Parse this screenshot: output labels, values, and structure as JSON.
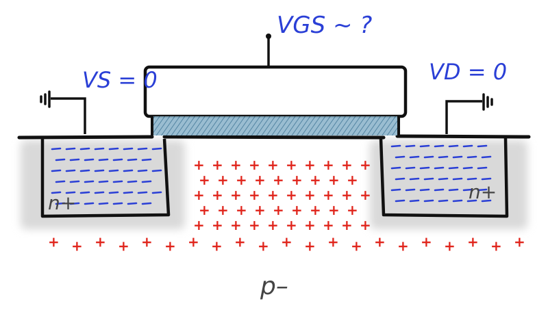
{
  "labels": {
    "vgs": "VGS ~ ?",
    "vs": "VS = 0",
    "vd": "VD = 0",
    "source_region": "n+",
    "drain_region": "n+",
    "substrate": "p–"
  },
  "colors": {
    "outline": "#111111",
    "electron_blue": "#2a3fd6",
    "hole_red": "#e0241b",
    "oxide_fill": "#5b8fb0",
    "shadow_grey": "#d6d6d6"
  },
  "icons": {
    "source_ground": "ground-icon",
    "drain_ground": "ground-icon"
  }
}
